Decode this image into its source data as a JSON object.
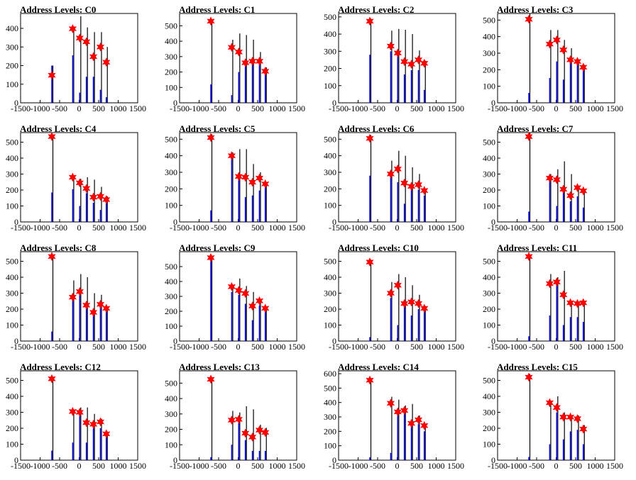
{
  "page_title": "Address Levels",
  "colors": {
    "background": "#ffffff",
    "axis": "#000000",
    "black_spike": "#000000",
    "blue_spike": "#0000ff",
    "marker": "#ff0000"
  },
  "chart_data": [
    {
      "type": "bar",
      "title": "Address Levels: C0",
      "xlim": [
        -1500,
        1500
      ],
      "ylim": [
        0,
        480
      ],
      "xticks": [
        -1500,
        -1000,
        -500,
        0,
        500,
        1000,
        1500
      ],
      "yticks": [
        0,
        100,
        200,
        300,
        400
      ],
      "black_heights": [
        200,
        390,
        465,
        405,
        380,
        380,
        300
      ],
      "blue_heights": [
        200,
        255,
        55,
        140,
        140,
        70,
        30
      ],
      "markers": [
        {
          "x": -700,
          "y": 148
        },
        {
          "x": -165,
          "y": 398
        },
        {
          "x": 15,
          "y": 348
        },
        {
          "x": 185,
          "y": 328
        },
        {
          "x": 365,
          "y": 248
        },
        {
          "x": 545,
          "y": 300
        },
        {
          "x": 695,
          "y": 218
        }
      ]
    },
    {
      "type": "bar",
      "title": "Address Levels: C1",
      "xlim": [
        -1500,
        1500
      ],
      "ylim": [
        0,
        580
      ],
      "xticks": [
        -1500,
        -1000,
        -500,
        0,
        500,
        1000,
        1500
      ],
      "yticks": [
        0,
        100,
        200,
        300,
        400,
        500
      ],
      "black_heights": [
        540,
        410,
        450,
        440,
        410,
        330,
        230
      ],
      "blue_heights": [
        120,
        50,
        200,
        250,
        260,
        260,
        200
      ],
      "markers": [
        {
          "x": -700,
          "y": 530
        },
        {
          "x": -165,
          "y": 360
        },
        {
          "x": 15,
          "y": 330
        },
        {
          "x": 185,
          "y": 260
        },
        {
          "x": 365,
          "y": 270
        },
        {
          "x": 545,
          "y": 270
        },
        {
          "x": 695,
          "y": 205
        }
      ]
    },
    {
      "type": "bar",
      "title": "Address Levels: C2",
      "xlim": [
        -1500,
        1500
      ],
      "ylim": [
        0,
        520
      ],
      "xticks": [
        -1500,
        -1000,
        -500,
        0,
        500,
        1000,
        1500
      ],
      "yticks": [
        0,
        100,
        200,
        300,
        400,
        500
      ],
      "black_heights": [
        490,
        420,
        430,
        425,
        400,
        305,
        245
      ],
      "blue_heights": [
        280,
        300,
        270,
        165,
        190,
        190,
        75
      ],
      "markers": [
        {
          "x": -700,
          "y": 475
        },
        {
          "x": -165,
          "y": 330
        },
        {
          "x": 15,
          "y": 290
        },
        {
          "x": 185,
          "y": 240
        },
        {
          "x": 365,
          "y": 225
        },
        {
          "x": 545,
          "y": 250
        },
        {
          "x": 695,
          "y": 230
        }
      ]
    },
    {
      "type": "bar",
      "title": "Address Levels: C3",
      "xlim": [
        -1500,
        1500
      ],
      "ylim": [
        0,
        540
      ],
      "xticks": [
        -1500,
        -1000,
        -500,
        0,
        500,
        1000,
        1500
      ],
      "yticks": [
        0,
        100,
        200,
        300,
        400,
        500
      ],
      "black_heights": [
        540,
        440,
        440,
        380,
        330,
        250,
        230
      ],
      "blue_heights": [
        60,
        150,
        250,
        140,
        250,
        250,
        210
      ],
      "markers": [
        {
          "x": -700,
          "y": 505
        },
        {
          "x": -165,
          "y": 355
        },
        {
          "x": 15,
          "y": 380
        },
        {
          "x": 185,
          "y": 320
        },
        {
          "x": 365,
          "y": 260
        },
        {
          "x": 545,
          "y": 250
        },
        {
          "x": 695,
          "y": 215
        }
      ]
    },
    {
      "type": "bar",
      "title": "Address Levels: C4",
      "xlim": [
        -1500,
        1500
      ],
      "ylim": [
        0,
        560
      ],
      "xticks": [
        -1500,
        -1000,
        -500,
        0,
        500,
        1000,
        1500
      ],
      "yticks": [
        0,
        100,
        200,
        300,
        400,
        500
      ],
      "black_heights": [
        540,
        280,
        270,
        280,
        265,
        220,
        160
      ],
      "blue_heights": [
        185,
        205,
        100,
        180,
        120,
        75,
        140
      ],
      "markers": [
        {
          "x": -700,
          "y": 535
        },
        {
          "x": -165,
          "y": 280
        },
        {
          "x": 15,
          "y": 245
        },
        {
          "x": 185,
          "y": 210
        },
        {
          "x": 365,
          "y": 155
        },
        {
          "x": 545,
          "y": 160
        },
        {
          "x": 695,
          "y": 140
        }
      ]
    },
    {
      "type": "bar",
      "title": "Address Levels: C5",
      "xlim": [
        -1500,
        1500
      ],
      "ylim": [
        0,
        540
      ],
      "xticks": [
        -1500,
        -1000,
        -500,
        0,
        500,
        1000,
        1500
      ],
      "yticks": [
        0,
        100,
        200,
        300,
        400,
        500
      ],
      "black_heights": [
        530,
        420,
        440,
        440,
        350,
        300,
        230
      ],
      "blue_heights": [
        70,
        400,
        270,
        150,
        160,
        190,
        210
      ],
      "markers": [
        {
          "x": -700,
          "y": 510
        },
        {
          "x": -165,
          "y": 400
        },
        {
          "x": 15,
          "y": 275
        },
        {
          "x": 185,
          "y": 270
        },
        {
          "x": 365,
          "y": 240
        },
        {
          "x": 545,
          "y": 265
        },
        {
          "x": 695,
          "y": 230
        }
      ]
    },
    {
      "type": "bar",
      "title": "Address Levels: C6",
      "xlim": [
        -1500,
        1500
      ],
      "ylim": [
        0,
        540
      ],
      "xticks": [
        -1500,
        -1000,
        -500,
        0,
        500,
        1000,
        1500
      ],
      "yticks": [
        0,
        100,
        200,
        300,
        400,
        500
      ],
      "black_heights": [
        525,
        370,
        430,
        400,
        330,
        290,
        200
      ],
      "blue_heights": [
        280,
        270,
        240,
        110,
        210,
        195,
        160
      ],
      "markers": [
        {
          "x": -700,
          "y": 505
        },
        {
          "x": -165,
          "y": 290
        },
        {
          "x": 15,
          "y": 320
        },
        {
          "x": 185,
          "y": 235
        },
        {
          "x": 365,
          "y": 215
        },
        {
          "x": 545,
          "y": 225
        },
        {
          "x": 695,
          "y": 190
        }
      ]
    },
    {
      "type": "bar",
      "title": "Address Levels: C7",
      "xlim": [
        -1500,
        1500
      ],
      "ylim": [
        0,
        560
      ],
      "xticks": [
        -1500,
        -1000,
        -500,
        0,
        500,
        1000,
        1500
      ],
      "yticks": [
        0,
        100,
        200,
        300,
        400,
        500
      ],
      "black_heights": [
        560,
        300,
        330,
        380,
        300,
        220,
        200
      ],
      "blue_heights": [
        65,
        270,
        100,
        200,
        130,
        160,
        90
      ],
      "markers": [
        {
          "x": -700,
          "y": 535
        },
        {
          "x": -165,
          "y": 275
        },
        {
          "x": 15,
          "y": 265
        },
        {
          "x": 185,
          "y": 205
        },
        {
          "x": 365,
          "y": 165
        },
        {
          "x": 545,
          "y": 215
        },
        {
          "x": 695,
          "y": 195
        }
      ]
    },
    {
      "type": "bar",
      "title": "Address Levels: C8",
      "xlim": [
        -1500,
        1500
      ],
      "ylim": [
        0,
        560
      ],
      "xticks": [
        -1500,
        -1000,
        -500,
        0,
        500,
        1000,
        1500
      ],
      "yticks": [
        0,
        100,
        200,
        300,
        400,
        500
      ],
      "black_heights": [
        540,
        380,
        420,
        400,
        300,
        290,
        210
      ],
      "blue_heights": [
        60,
        265,
        300,
        220,
        200,
        215,
        190
      ],
      "markers": [
        {
          "x": -700,
          "y": 530
        },
        {
          "x": -165,
          "y": 275
        },
        {
          "x": 15,
          "y": 310
        },
        {
          "x": 185,
          "y": 225
        },
        {
          "x": 365,
          "y": 180
        },
        {
          "x": 545,
          "y": 230
        },
        {
          "x": 695,
          "y": 205
        }
      ]
    },
    {
      "type": "bar",
      "title": "Address Levels: C9",
      "xlim": [
        -1500,
        1500
      ],
      "ylim": [
        0,
        600
      ],
      "xticks": [
        -1500,
        -1000,
        -500,
        0,
        500,
        1000,
        1500
      ],
      "yticks": [
        0,
        100,
        200,
        300,
        400,
        500
      ],
      "black_heights": [
        570,
        370,
        420,
        370,
        330,
        280,
        230
      ],
      "blue_heights": [
        570,
        330,
        310,
        250,
        140,
        240,
        210
      ],
      "markers": [
        {
          "x": -700,
          "y": 560
        },
        {
          "x": -165,
          "y": 365
        },
        {
          "x": 15,
          "y": 340
        },
        {
          "x": 185,
          "y": 320
        },
        {
          "x": 365,
          "y": 235
        },
        {
          "x": 545,
          "y": 270
        },
        {
          "x": 695,
          "y": 220
        }
      ]
    },
    {
      "type": "bar",
      "title": "Address Levels: C10",
      "xlim": [
        -1500,
        1500
      ],
      "ylim": [
        0,
        560
      ],
      "xticks": [
        -1500,
        -1000,
        -500,
        0,
        500,
        1000,
        1500
      ],
      "yticks": [
        0,
        100,
        200,
        300,
        400,
        500
      ],
      "black_heights": [
        510,
        370,
        420,
        400,
        350,
        290,
        220
      ],
      "blue_heights": [
        25,
        270,
        100,
        220,
        160,
        200,
        200
      ],
      "markers": [
        {
          "x": -700,
          "y": 495
        },
        {
          "x": -165,
          "y": 300
        },
        {
          "x": 15,
          "y": 350
        },
        {
          "x": 185,
          "y": 235
        },
        {
          "x": 365,
          "y": 245
        },
        {
          "x": 545,
          "y": 235
        },
        {
          "x": 695,
          "y": 205
        }
      ]
    },
    {
      "type": "bar",
      "title": "Address Levels: C11",
      "xlim": [
        -1500,
        1500
      ],
      "ylim": [
        0,
        560
      ],
      "xticks": [
        -1500,
        -1000,
        -500,
        0,
        500,
        1000,
        1500
      ],
      "yticks": [
        0,
        100,
        200,
        300,
        400,
        500
      ],
      "black_heights": [
        540,
        420,
        400,
        440,
        250,
        240,
        230
      ],
      "blue_heights": [
        30,
        160,
        380,
        100,
        150,
        150,
        120
      ],
      "markers": [
        {
          "x": -700,
          "y": 530
        },
        {
          "x": -165,
          "y": 360
        },
        {
          "x": 15,
          "y": 370
        },
        {
          "x": 185,
          "y": 290
        },
        {
          "x": 365,
          "y": 240
        },
        {
          "x": 545,
          "y": 235
        },
        {
          "x": 695,
          "y": 240
        }
      ]
    },
    {
      "type": "bar",
      "title": "Address Levels: C12",
      "xlim": [
        -1500,
        1500
      ],
      "ylim": [
        0,
        560
      ],
      "xticks": [
        -1500,
        -1000,
        -500,
        0,
        500,
        1000,
        1500
      ],
      "yticks": [
        0,
        100,
        200,
        300,
        400,
        500
      ],
      "black_heights": [
        520,
        310,
        330,
        330,
        290,
        260,
        180
      ],
      "blue_heights": [
        60,
        110,
        290,
        110,
        200,
        200,
        150
      ],
      "markers": [
        {
          "x": -700,
          "y": 510
        },
        {
          "x": -165,
          "y": 305
        },
        {
          "x": 15,
          "y": 300
        },
        {
          "x": 185,
          "y": 235
        },
        {
          "x": 365,
          "y": 225
        },
        {
          "x": 545,
          "y": 240
        },
        {
          "x": 695,
          "y": 165
        }
      ]
    },
    {
      "type": "bar",
      "title": "Address Levels: C13",
      "xlim": [
        -1500,
        1500
      ],
      "ylim": [
        0,
        580
      ],
      "xticks": [
        -1500,
        -1000,
        -500,
        0,
        500,
        1000,
        1500
      ],
      "yticks": [
        0,
        100,
        200,
        300,
        400,
        500
      ],
      "black_heights": [
        540,
        320,
        310,
        350,
        330,
        230,
        210
      ],
      "blue_heights": [
        20,
        100,
        240,
        130,
        60,
        60,
        60
      ],
      "markers": [
        {
          "x": -700,
          "y": 525
        },
        {
          "x": -165,
          "y": 260
        },
        {
          "x": 15,
          "y": 265
        },
        {
          "x": 185,
          "y": 175
        },
        {
          "x": 365,
          "y": 150
        },
        {
          "x": 545,
          "y": 195
        },
        {
          "x": 695,
          "y": 180
        }
      ]
    },
    {
      "type": "bar",
      "title": "Address Levels: C14",
      "xlim": [
        -1500,
        1500
      ],
      "ylim": [
        0,
        620
      ],
      "xticks": [
        -1500,
        -1000,
        -500,
        0,
        500,
        1000,
        1500
      ],
      "yticks": [
        0,
        100,
        200,
        300,
        400,
        500,
        600
      ],
      "black_heights": [
        570,
        440,
        420,
        380,
        390,
        310,
        250
      ],
      "blue_heights": [
        20,
        50,
        350,
        350,
        250,
        250,
        200
      ],
      "markers": [
        {
          "x": -700,
          "y": 555
        },
        {
          "x": -165,
          "y": 395
        },
        {
          "x": 15,
          "y": 335
        },
        {
          "x": 185,
          "y": 345
        },
        {
          "x": 365,
          "y": 255
        },
        {
          "x": 545,
          "y": 280
        },
        {
          "x": 695,
          "y": 240
        }
      ]
    },
    {
      "type": "bar",
      "title": "Address Levels: C15",
      "xlim": [
        -1500,
        1500
      ],
      "ylim": [
        0,
        560
      ],
      "xticks": [
        -1500,
        -1000,
        -500,
        0,
        500,
        1000,
        1500
      ],
      "yticks": [
        0,
        100,
        200,
        300,
        400,
        500
      ],
      "black_heights": [
        540,
        360,
        400,
        300,
        280,
        280,
        220
      ],
      "blue_heights": [
        20,
        100,
        300,
        130,
        180,
        190,
        100
      ],
      "markers": [
        {
          "x": -700,
          "y": 520
        },
        {
          "x": -165,
          "y": 360
        },
        {
          "x": 15,
          "y": 330
        },
        {
          "x": 185,
          "y": 270
        },
        {
          "x": 365,
          "y": 270
        },
        {
          "x": 545,
          "y": 260
        },
        {
          "x": 695,
          "y": 195
        }
      ]
    }
  ]
}
